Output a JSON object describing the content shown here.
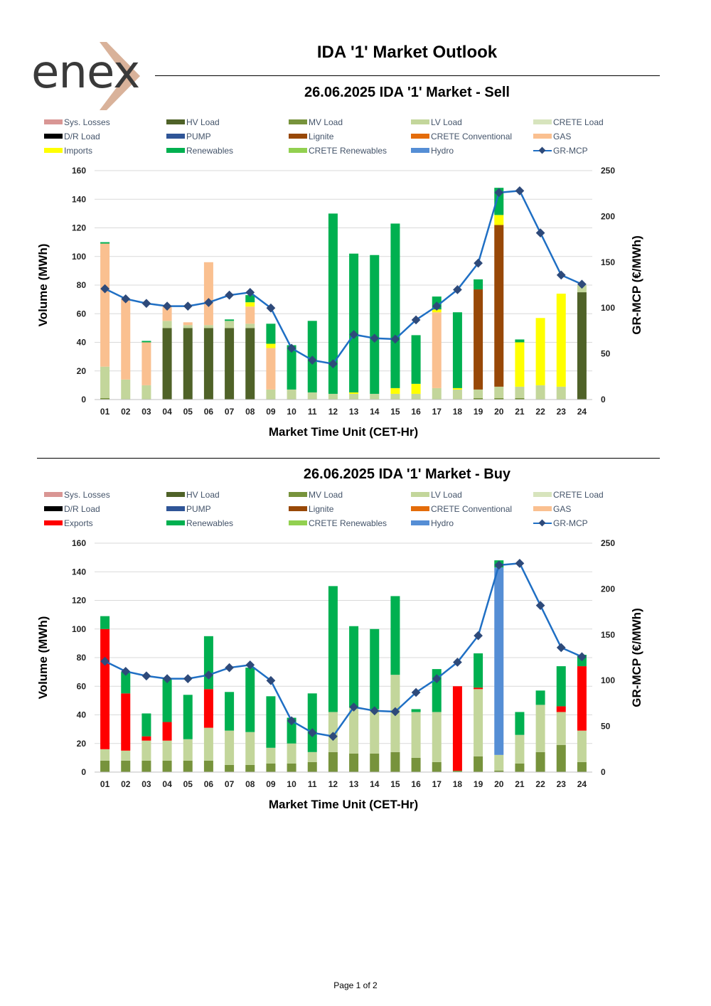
{
  "logo": {
    "text": "enex"
  },
  "page_title": "IDA '1' Market Outlook",
  "footer": "Page 1 of 2",
  "colors": {
    "sys_losses": "#d99694",
    "hv_load": "#4f6228",
    "mv_load": "#77933c",
    "lv_load": "#c3d69b",
    "crete_load": "#d7e4bd",
    "dr_load": "#000000",
    "pump": "#2f5597",
    "lignite": "#984807",
    "crete_conventional": "#e46c0a",
    "gas": "#fac090",
    "imports": "#ffff00",
    "exports": "#ff0000",
    "renewables": "#00b050",
    "crete_renewables": "#92d050",
    "hydro": "#558ed5",
    "mcp_line": "#1f6fc4",
    "mcp_marker": "#2e4a7a"
  },
  "chart_data": [
    {
      "type": "bar",
      "title": "26.06.2025  IDA '1' Market - Sell",
      "xlabel": "Market Time Unit (CET-Hr)",
      "ylabel": "Volume (MWh)",
      "y2label": "GR-MCP (€/MWh)",
      "ylim": [
        0,
        160
      ],
      "yticks": [
        0,
        20,
        40,
        60,
        80,
        100,
        120,
        140,
        160
      ],
      "y2lim": [
        0,
        250
      ],
      "y2ticks": [
        0,
        50,
        100,
        150,
        200,
        250
      ],
      "grid": true,
      "categories": [
        "01",
        "02",
        "03",
        "04",
        "05",
        "06",
        "07",
        "08",
        "09",
        "10",
        "11",
        "12",
        "13",
        "14",
        "15",
        "16",
        "17",
        "18",
        "19",
        "20",
        "21",
        "22",
        "23",
        "24"
      ],
      "legend": [
        {
          "label": "Sys. Losses",
          "key": "sys_losses"
        },
        {
          "label": "HV Load",
          "key": "hv_load"
        },
        {
          "label": "MV Load",
          "key": "mv_load"
        },
        {
          "label": "LV Load",
          "key": "lv_load"
        },
        {
          "label": "CRETE Load",
          "key": "crete_load"
        },
        {
          "label": "D/R Load",
          "key": "dr_load"
        },
        {
          "label": "PUMP",
          "key": "pump"
        },
        {
          "label": "Lignite",
          "key": "lignite"
        },
        {
          "label": "CRETE Conventional",
          "key": "crete_conventional"
        },
        {
          "label": "GAS",
          "key": "gas"
        },
        {
          "label": "Imports",
          "key": "imports"
        },
        {
          "label": "Renewables",
          "key": "renewables"
        },
        {
          "label": "CRETE Renewables",
          "key": "crete_renewables"
        },
        {
          "label": "Hydro",
          "key": "hydro"
        },
        {
          "label": "GR-MCP",
          "key": "line"
        }
      ],
      "series": [
        {
          "name": "HV Load",
          "key": "hv_load",
          "values": [
            0,
            0,
            0,
            50,
            50,
            50,
            50,
            50,
            0,
            0,
            0,
            0,
            0,
            0,
            0,
            0,
            0,
            0,
            0,
            0,
            0,
            0,
            0,
            75
          ]
        },
        {
          "name": "MV Load",
          "key": "mv_load",
          "values": [
            1,
            0,
            0,
            0,
            0,
            0,
            0,
            0,
            0,
            0,
            0,
            0,
            0,
            0,
            0,
            0,
            0,
            0,
            1,
            1,
            1,
            0,
            0,
            0
          ]
        },
        {
          "name": "LV Load",
          "key": "lv_load",
          "values": [
            22,
            14,
            10,
            5,
            2,
            2,
            5,
            3,
            7,
            7,
            5,
            4,
            4,
            4,
            4,
            4,
            8,
            7,
            6,
            8,
            8,
            10,
            9,
            5
          ]
        },
        {
          "name": "Lignite",
          "key": "lignite",
          "values": [
            0,
            0,
            0,
            0,
            0,
            0,
            0,
            0,
            0,
            0,
            0,
            0,
            0,
            0,
            0,
            0,
            0,
            0,
            70,
            113,
            0,
            0,
            0,
            0
          ]
        },
        {
          "name": "GAS",
          "key": "gas",
          "values": [
            86,
            56,
            30,
            10,
            2,
            44,
            0,
            12,
            29,
            0,
            0,
            0,
            0,
            0,
            0,
            0,
            53,
            0,
            0,
            0,
            0,
            0,
            0,
            0
          ]
        },
        {
          "name": "Imports",
          "key": "imports",
          "values": [
            0,
            0,
            0,
            0,
            0,
            0,
            0,
            3,
            3,
            0,
            0,
            0,
            1,
            0,
            4,
            7,
            2,
            1,
            0,
            7,
            31,
            47,
            65,
            0
          ]
        },
        {
          "name": "Renewables",
          "key": "renewables",
          "values": [
            1,
            0,
            1,
            0,
            0,
            0,
            1,
            5,
            14,
            31,
            50,
            126,
            97,
            97,
            115,
            34,
            9,
            53,
            7,
            19,
            2,
            0,
            0,
            0
          ]
        }
      ],
      "line": {
        "name": "GR-MCP",
        "values": [
          121,
          110,
          105,
          102,
          102,
          106,
          114,
          117,
          100,
          56,
          43,
          39,
          71,
          67,
          66,
          87,
          102,
          120,
          149,
          226,
          228,
          182,
          136,
          126
        ]
      }
    },
    {
      "type": "bar",
      "title": "26.06.2025  IDA '1' Market - Buy",
      "xlabel": "Market Time Unit (CET-Hr)",
      "ylabel": "Volume (MWh)",
      "y2label": "GR-MCP (€/MWh)",
      "ylim": [
        0,
        160
      ],
      "yticks": [
        0,
        20,
        40,
        60,
        80,
        100,
        120,
        140,
        160
      ],
      "y2lim": [
        0,
        250
      ],
      "y2ticks": [
        0,
        50,
        100,
        150,
        200,
        250
      ],
      "grid": true,
      "categories": [
        "01",
        "02",
        "03",
        "04",
        "05",
        "06",
        "07",
        "08",
        "09",
        "10",
        "11",
        "12",
        "13",
        "14",
        "15",
        "16",
        "17",
        "18",
        "19",
        "20",
        "21",
        "22",
        "23",
        "24"
      ],
      "legend": [
        {
          "label": "Sys. Losses",
          "key": "sys_losses"
        },
        {
          "label": "HV Load",
          "key": "hv_load"
        },
        {
          "label": "MV Load",
          "key": "mv_load"
        },
        {
          "label": "LV Load",
          "key": "lv_load"
        },
        {
          "label": "CRETE Load",
          "key": "crete_load"
        },
        {
          "label": "D/R Load",
          "key": "dr_load"
        },
        {
          "label": "PUMP",
          "key": "pump"
        },
        {
          "label": "Lignite",
          "key": "lignite"
        },
        {
          "label": "CRETE Conventional",
          "key": "crete_conventional"
        },
        {
          "label": "GAS",
          "key": "gas"
        },
        {
          "label": "Exports",
          "key": "exports"
        },
        {
          "label": "Renewables",
          "key": "renewables"
        },
        {
          "label": "CRETE Renewables",
          "key": "crete_renewables"
        },
        {
          "label": "Hydro",
          "key": "hydro"
        },
        {
          "label": "GR-MCP",
          "key": "line"
        }
      ],
      "series": [
        {
          "name": "MV Load",
          "key": "mv_load",
          "values": [
            8,
            8,
            8,
            8,
            8,
            8,
            5,
            5,
            6,
            6,
            7,
            14,
            13,
            13,
            14,
            10,
            7,
            1,
            11,
            1,
            6,
            14,
            19,
            7
          ]
        },
        {
          "name": "LV Load",
          "key": "lv_load",
          "values": [
            8,
            7,
            14,
            14,
            15,
            23,
            24,
            23,
            11,
            14,
            7,
            28,
            32,
            31,
            54,
            32,
            35,
            0,
            47,
            11,
            20,
            33,
            23,
            22
          ]
        },
        {
          "name": "Hydro",
          "key": "hydro",
          "values": [
            0,
            0,
            0,
            0,
            0,
            0,
            0,
            0,
            0,
            0,
            0,
            0,
            0,
            0,
            0,
            0,
            0,
            0,
            0,
            131,
            0,
            0,
            0,
            0
          ]
        },
        {
          "name": "Exports",
          "key": "exports",
          "values": [
            84,
            40,
            3,
            13,
            0,
            27,
            0,
            0,
            0,
            0,
            0,
            0,
            0,
            0,
            0,
            0,
            0,
            59,
            1,
            0,
            0,
            0,
            4,
            45
          ]
        },
        {
          "name": "Renewables",
          "key": "renewables",
          "values": [
            9,
            15,
            16,
            30,
            31,
            37,
            27,
            45,
            36,
            18,
            41,
            88,
            57,
            56,
            55,
            2,
            30,
            0,
            24,
            5,
            16,
            10,
            28,
            8
          ]
        }
      ],
      "line": {
        "name": "GR-MCP",
        "values": [
          121,
          110,
          105,
          102,
          102,
          106,
          114,
          117,
          100,
          56,
          43,
          39,
          71,
          67,
          66,
          87,
          102,
          120,
          149,
          226,
          228,
          182,
          136,
          126
        ]
      }
    }
  ]
}
